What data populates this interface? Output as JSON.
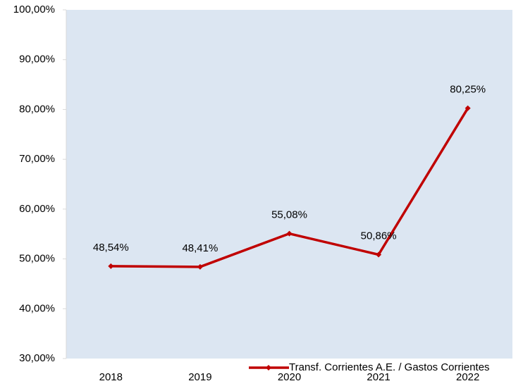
{
  "chart_data": {
    "type": "line",
    "categories": [
      "2018",
      "2019",
      "2020",
      "2021",
      "2022"
    ],
    "series": [
      {
        "name": "Transf. Corrientes A.E. / Gastos Corrientes",
        "color": "#c00000",
        "values": [
          48.54,
          48.41,
          55.08,
          50.86,
          80.25
        ],
        "value_labels": [
          "48,54%",
          "48,41%",
          "55,08%",
          "50,86%",
          "80,25%"
        ]
      }
    ],
    "ylim": [
      30,
      100
    ],
    "yticks": [
      {
        "value": 30,
        "label": "30,00%"
      },
      {
        "value": 40,
        "label": "40,00%"
      },
      {
        "value": 50,
        "label": "50,00%"
      },
      {
        "value": 60,
        "label": "60,00%"
      },
      {
        "value": 70,
        "label": "70,00%"
      },
      {
        "value": 80,
        "label": "80,00%"
      },
      {
        "value": 90,
        "label": "90,00%"
      },
      {
        "value": 100,
        "label": "100,00%"
      }
    ],
    "grid": false,
    "legend": "bottom-right",
    "plot_background": "#dce6f2"
  }
}
